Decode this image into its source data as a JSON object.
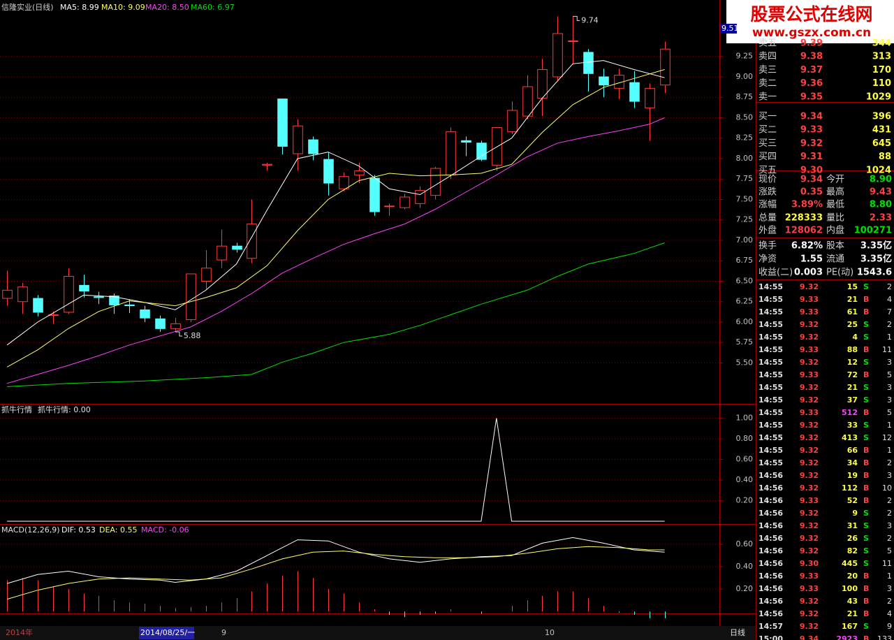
{
  "header": {
    "stock": "信隆实业(日线)",
    "ma5": "MA5: 8.99",
    "ma10": "MA10: 9.09",
    "ma20": "MA20: 8.50",
    "ma60": "MA60: 6.97",
    "cursor_price": "9.51"
  },
  "watermark": {
    "title": "股票公式在线网",
    "url": "www.gszx.com.cn"
  },
  "price_chart": {
    "type": "candlestick",
    "xlim": [
      -0.46,
      46.58
    ],
    "ylim": [
      5.0,
      9.94
    ],
    "yticks": [
      {
        "value": 9.25,
        "label": "9.25"
      },
      {
        "value": 9.0,
        "label": "9.00"
      },
      {
        "value": 8.75,
        "label": "8.75"
      },
      {
        "value": 8.5,
        "label": "8.50"
      },
      {
        "value": 8.25,
        "label": "8.25"
      },
      {
        "value": 8.0,
        "label": "8.00"
      },
      {
        "value": 7.75,
        "label": "7.75"
      },
      {
        "value": 7.5,
        "label": "7.50"
      },
      {
        "value": 7.25,
        "label": "7.25"
      },
      {
        "value": 7.0,
        "label": "7.00"
      },
      {
        "value": 6.75,
        "label": "6.75"
      },
      {
        "value": 6.5,
        "label": "6.50"
      },
      {
        "value": 6.25,
        "label": "6.25"
      },
      {
        "value": 6.0,
        "label": "6.00"
      },
      {
        "value": 5.75,
        "label": "5.75"
      },
      {
        "value": 5.5,
        "label": "5.50"
      }
    ],
    "grid": true,
    "candles": [
      {
        "open": 6.29,
        "high": 6.63,
        "low": 6.2,
        "close": 6.39
      },
      {
        "open": 6.25,
        "high": 6.48,
        "low": 6.1,
        "close": 6.43
      },
      {
        "open": 6.29,
        "high": 6.33,
        "low": 6.07,
        "close": 6.12
      },
      {
        "open": 6.08,
        "high": 6.13,
        "low": 5.98,
        "close": 6.09
      },
      {
        "open": 6.12,
        "high": 6.66,
        "low": 6.1,
        "close": 6.56
      },
      {
        "open": 6.45,
        "high": 6.58,
        "low": 6.3,
        "close": 6.38
      },
      {
        "open": 6.31,
        "high": 6.37,
        "low": 6.22,
        "close": 6.3
      },
      {
        "open": 6.32,
        "high": 6.35,
        "low": 6.1,
        "close": 6.21
      },
      {
        "open": 6.21,
        "high": 6.28,
        "low": 6.11,
        "close": 6.2
      },
      {
        "open": 6.15,
        "high": 6.2,
        "low": 6.0,
        "close": 6.05
      },
      {
        "open": 6.04,
        "high": 6.08,
        "low": 5.88,
        "close": 5.92
      },
      {
        "open": 5.92,
        "high": 6.05,
        "low": 5.88,
        "close": 5.98
      },
      {
        "open": 6.03,
        "high": 6.59,
        "low": 6.0,
        "close": 6.59
      },
      {
        "open": 6.5,
        "high": 6.88,
        "low": 6.4,
        "close": 6.66
      },
      {
        "open": 6.76,
        "high": 7.13,
        "low": 6.66,
        "close": 6.93
      },
      {
        "open": 6.93,
        "high": 6.97,
        "low": 6.85,
        "close": 6.89
      },
      {
        "open": 6.78,
        "high": 7.5,
        "low": 6.72,
        "close": 7.2
      },
      {
        "open": 7.92,
        "high": 7.95,
        "low": 7.85,
        "close": 7.93
      },
      {
        "open": 8.73,
        "high": 8.73,
        "low": 8.05,
        "close": 8.15
      },
      {
        "open": 8.06,
        "high": 8.48,
        "low": 7.85,
        "close": 8.4
      },
      {
        "open": 8.23,
        "high": 8.27,
        "low": 7.98,
        "close": 8.06
      },
      {
        "open": 7.99,
        "high": 8.08,
        "low": 7.55,
        "close": 7.7
      },
      {
        "open": 7.63,
        "high": 7.83,
        "low": 7.6,
        "close": 7.78
      },
      {
        "open": 7.8,
        "high": 7.95,
        "low": 7.7,
        "close": 7.85
      },
      {
        "open": 7.76,
        "high": 7.8,
        "low": 7.3,
        "close": 7.35
      },
      {
        "open": 7.42,
        "high": 7.45,
        "low": 7.3,
        "close": 7.42
      },
      {
        "open": 7.4,
        "high": 7.57,
        "low": 7.38,
        "close": 7.53
      },
      {
        "open": 7.45,
        "high": 7.66,
        "low": 7.4,
        "close": 7.61
      },
      {
        "open": 7.55,
        "high": 7.9,
        "low": 7.5,
        "close": 7.88
      },
      {
        "open": 7.8,
        "high": 8.38,
        "low": 7.75,
        "close": 8.33
      },
      {
        "open": 8.22,
        "high": 8.27,
        "low": 8.03,
        "close": 8.2
      },
      {
        "open": 8.19,
        "high": 8.22,
        "low": 7.97,
        "close": 7.99
      },
      {
        "open": 7.92,
        "high": 8.38,
        "low": 7.85,
        "close": 8.38
      },
      {
        "open": 8.33,
        "high": 8.7,
        "low": 8.3,
        "close": 8.59
      },
      {
        "open": 8.52,
        "high": 9.02,
        "low": 8.48,
        "close": 8.88
      },
      {
        "open": 8.74,
        "high": 9.22,
        "low": 8.52,
        "close": 9.09
      },
      {
        "open": 9.0,
        "high": 9.74,
        "low": 8.95,
        "close": 9.53
      },
      {
        "open": 9.44,
        "high": 9.74,
        "low": 9.15,
        "close": 9.44
      },
      {
        "open": 9.3,
        "high": 9.34,
        "low": 8.82,
        "close": 9.04
      },
      {
        "open": 9.0,
        "high": 9.1,
        "low": 8.75,
        "close": 8.9
      },
      {
        "open": 8.86,
        "high": 9.1,
        "low": 8.73,
        "close": 9.02
      },
      {
        "open": 8.93,
        "high": 9.07,
        "low": 8.62,
        "close": 8.7
      },
      {
        "open": 8.62,
        "high": 8.92,
        "low": 8.22,
        "close": 8.86
      },
      {
        "open": 8.9,
        "high": 9.43,
        "low": 8.8,
        "close": 9.34
      }
    ],
    "series": [
      {
        "name": "MA5",
        "color": "#ffffff",
        "x": [
          0,
          2,
          5,
          7,
          9,
          11,
          13,
          15,
          17,
          19,
          21,
          23,
          25,
          27,
          29,
          31,
          33,
          35,
          37,
          39,
          41,
          43
        ],
        "values": [
          5.72,
          6.0,
          6.33,
          6.31,
          6.24,
          6.15,
          6.39,
          6.71,
          7.37,
          8.0,
          8.08,
          7.91,
          7.63,
          7.56,
          7.79,
          8.03,
          8.25,
          8.74,
          9.16,
          9.2,
          9.09,
          8.99
        ]
      },
      {
        "name": "MA10",
        "color": "#ffff66",
        "x": [
          0,
          2,
          4,
          6,
          8,
          11,
          13,
          15,
          17,
          19,
          21,
          23,
          25,
          27,
          29,
          31,
          33,
          35,
          37,
          39,
          41,
          43
        ],
        "values": [
          5.45,
          5.66,
          5.92,
          6.13,
          6.26,
          6.2,
          6.3,
          6.42,
          6.69,
          7.12,
          7.5,
          7.73,
          7.82,
          7.79,
          7.8,
          7.82,
          7.93,
          8.32,
          8.66,
          8.87,
          8.98,
          9.09
        ]
      },
      {
        "name": "MA20",
        "color": "#ff40ff",
        "x": [
          0,
          2,
          4,
          6,
          8,
          10,
          12,
          14,
          16,
          18,
          20,
          22,
          24,
          26,
          28,
          30,
          32,
          34,
          36,
          38,
          40,
          42,
          43
        ],
        "values": [
          5.25,
          5.36,
          5.47,
          5.59,
          5.72,
          5.83,
          5.94,
          6.13,
          6.35,
          6.6,
          6.78,
          6.95,
          7.08,
          7.2,
          7.38,
          7.59,
          7.8,
          8.02,
          8.19,
          8.27,
          8.34,
          8.42,
          8.5
        ]
      },
      {
        "name": "MA60",
        "color": "#00e000",
        "x": [
          0,
          4,
          9,
          13,
          16,
          18,
          20,
          22,
          25,
          27,
          29,
          31,
          34,
          36,
          38,
          41,
          43
        ],
        "values": [
          5.21,
          5.25,
          5.28,
          5.32,
          5.36,
          5.51,
          5.62,
          5.75,
          5.85,
          5.96,
          6.09,
          6.22,
          6.39,
          6.56,
          6.71,
          6.84,
          6.97
        ]
      }
    ],
    "annotations": [
      {
        "label": "9.74",
        "candle": 37,
        "value": 9.74
      },
      {
        "label": "5.88",
        "candle": 11,
        "value": 5.88
      }
    ]
  },
  "indicator_chart": {
    "type": "line",
    "title": "抓牛行情",
    "readout": "抓牛行情: 0.00",
    "xlim": [
      -0.46,
      46.58
    ],
    "ylim": [
      0,
      1.05
    ],
    "yticks": [
      {
        "value": 1.0,
        "label": "1.00"
      },
      {
        "value": 0.8,
        "label": "0.80"
      },
      {
        "value": 0.6,
        "label": "0.60"
      },
      {
        "value": 0.4,
        "label": "0.40"
      },
      {
        "value": 0.2,
        "label": "0.20"
      }
    ],
    "grid": true,
    "series": [
      {
        "name": "抓牛行情",
        "color": "#ffffff",
        "values": [
          0,
          0,
          0,
          0,
          0,
          0,
          0,
          0,
          0,
          0,
          0,
          0,
          0,
          0,
          0,
          0,
          0,
          0,
          0,
          0,
          0,
          0,
          0,
          0,
          0,
          0,
          0,
          0,
          0,
          0,
          0,
          0,
          1,
          0,
          0,
          0,
          0,
          0,
          0,
          0,
          0,
          0,
          0,
          0
        ]
      }
    ]
  },
  "macd_chart": {
    "type": "macd",
    "title": "MACD(12,26,9)",
    "dif_label": "DIF: 0.53",
    "dea_label": "DEA: 0.55",
    "macd_label": "MACD: -0.06",
    "xlim": [
      -0.46,
      46.58
    ],
    "ylim": [
      -0.03,
      0.7
    ],
    "yticks": [
      {
        "value": 0.6,
        "label": "0.60"
      },
      {
        "value": 0.4,
        "label": "0.40"
      },
      {
        "value": 0.2,
        "label": "0.20"
      }
    ],
    "grid": true,
    "series": [
      {
        "name": "DIF",
        "color": "#ffffff",
        "x": [
          0,
          2,
          4,
          6,
          8,
          10,
          11,
          13,
          15,
          17,
          19,
          21,
          23,
          25,
          27,
          29,
          31,
          33,
          35,
          37,
          39,
          41,
          43
        ],
        "values": [
          0.25,
          0.33,
          0.36,
          0.31,
          0.29,
          0.28,
          0.26,
          0.29,
          0.36,
          0.5,
          0.64,
          0.63,
          0.53,
          0.47,
          0.44,
          0.47,
          0.49,
          0.5,
          0.61,
          0.66,
          0.61,
          0.55,
          0.53
        ]
      },
      {
        "name": "DEA",
        "color": "#ffff66",
        "x": [
          0,
          2,
          4,
          6,
          8,
          10,
          12,
          14,
          16,
          18,
          20,
          22,
          24,
          26,
          28,
          30,
          32,
          34,
          36,
          38,
          40,
          42,
          43
        ],
        "values": [
          0.11,
          0.19,
          0.25,
          0.29,
          0.3,
          0.29,
          0.28,
          0.3,
          0.38,
          0.47,
          0.53,
          0.54,
          0.51,
          0.49,
          0.48,
          0.48,
          0.49,
          0.52,
          0.56,
          0.58,
          0.57,
          0.55,
          0.55
        ]
      }
    ],
    "histogram": [
      0.28,
      0.3,
      0.28,
      0.22,
      0.2,
      0.16,
      0.14,
      0.1,
      0.08,
      0.07,
      0.05,
      0.03,
      0.04,
      0.05,
      0.08,
      0.12,
      0.18,
      0.25,
      0.32,
      0.36,
      0.3,
      0.2,
      0.16,
      0.08,
      0.02,
      -0.03,
      -0.05,
      -0.03,
      -0.02,
      0.02,
      0,
      -0.02,
      0,
      0.05,
      0.1,
      0.14,
      0.18,
      0.18,
      0.12,
      0.05,
      -0.01,
      -0.03,
      -0.06,
      -0.06
    ]
  },
  "order_book": [
    [
      "卖五",
      "9.39",
      "344"
    ],
    [
      "卖四",
      "9.38",
      "313"
    ],
    [
      "卖三",
      "9.37",
      "170"
    ],
    [
      "卖二",
      "9.36",
      "110"
    ],
    [
      "卖一",
      "9.35",
      "1029"
    ],
    [
      "买一",
      "9.34",
      "396"
    ],
    [
      "买二",
      "9.33",
      "431"
    ],
    [
      "买三",
      "9.32",
      "645"
    ],
    [
      "买四",
      "9.31",
      "88"
    ],
    [
      "买五",
      "9.30",
      "1024"
    ]
  ],
  "quote_stats": [
    [
      "现价",
      "9.34",
      "今开",
      "8.90"
    ],
    [
      "涨跌",
      "0.35",
      "最高",
      "9.43"
    ],
    [
      "涨幅",
      "3.89%",
      "最低",
      "8.80"
    ],
    [
      "总量",
      "228333",
      "量比",
      "2.33"
    ],
    [
      "外盘",
      "128062",
      "内盘",
      "100271"
    ],
    [
      "换手",
      "6.82%",
      "股本",
      "3.35亿"
    ],
    [
      "净资",
      "1.55",
      "流通",
      "3.35亿"
    ],
    [
      "收益(二)",
      "0.003",
      "PE(动)",
      "1543.6"
    ]
  ],
  "trades": [
    [
      "14:55",
      "9.32",
      "15",
      "S",
      "2"
    ],
    [
      "14:55",
      "9.33",
      "21",
      "B",
      "4"
    ],
    [
      "14:55",
      "9.33",
      "61",
      "B",
      "7"
    ],
    [
      "14:55",
      "9.32",
      "25",
      "S",
      "2"
    ],
    [
      "14:55",
      "9.32",
      "4",
      "S",
      "1"
    ],
    [
      "14:55",
      "9.33",
      "88",
      "B",
      "11"
    ],
    [
      "14:55",
      "9.32",
      "12",
      "S",
      "3"
    ],
    [
      "14:55",
      "9.33",
      "72",
      "B",
      "5"
    ],
    [
      "14:55",
      "9.32",
      "21",
      "S",
      "3"
    ],
    [
      "14:55",
      "9.32",
      "37",
      "S",
      "3"
    ],
    [
      "14:55",
      "9.33",
      "512",
      "B",
      "5"
    ],
    [
      "14:55",
      "9.32",
      "33",
      "S",
      "1"
    ],
    [
      "14:55",
      "9.32",
      "413",
      "S",
      "12"
    ],
    [
      "14:55",
      "9.32",
      "66",
      "B",
      "1"
    ],
    [
      "14:55",
      "9.32",
      "34",
      "B",
      "2"
    ],
    [
      "14:56",
      "9.32",
      "19",
      "B",
      "3"
    ],
    [
      "14:56",
      "9.32",
      "112",
      "B",
      "10"
    ],
    [
      "14:56",
      "9.33",
      "52",
      "B",
      "2"
    ],
    [
      "14:56",
      "9.32",
      "9",
      "S",
      "2"
    ],
    [
      "14:56",
      "9.32",
      "31",
      "S",
      "3"
    ],
    [
      "14:56",
      "9.32",
      "26",
      "S",
      "2"
    ],
    [
      "14:56",
      "9.32",
      "82",
      "S",
      "5"
    ],
    [
      "14:56",
      "9.30",
      "445",
      "S",
      "11"
    ],
    [
      "14:56",
      "9.33",
      "20",
      "B",
      "1"
    ],
    [
      "14:56",
      "9.33",
      "100",
      "B",
      "3"
    ],
    [
      "14:56",
      "9.32",
      "43",
      "B",
      "2"
    ],
    [
      "14:56",
      "9.32",
      "21",
      "B",
      "4"
    ],
    [
      "14:57",
      "9.32",
      "167",
      "S",
      "9"
    ],
    [
      "15:00",
      "9.34",
      "2923",
      "B",
      "133"
    ]
  ],
  "footer": {
    "year": "2014年",
    "cursor_date": "2014/08/25/一",
    "month_9": "9",
    "month_10": "10",
    "period": "日线"
  }
}
